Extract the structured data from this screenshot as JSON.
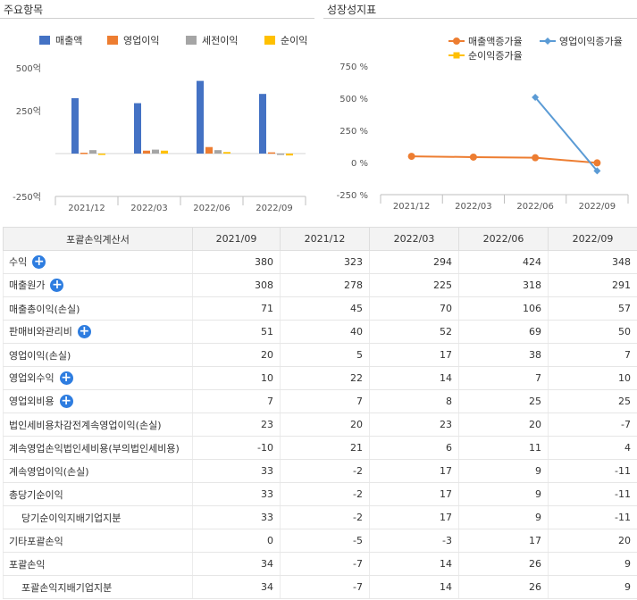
{
  "left_panel": {
    "title": "주요항목"
  },
  "right_panel": {
    "title": "성장성지표"
  },
  "chart_data": [
    {
      "type": "bar",
      "categories": [
        "2021/12",
        "2022/03",
        "2022/06",
        "2022/09"
      ],
      "series": [
        {
          "name": "매출액",
          "color": "#4472c4",
          "values": [
            323,
            294,
            424,
            348
          ]
        },
        {
          "name": "영업이익",
          "color": "#ed7d31",
          "values": [
            5,
            17,
            38,
            7
          ]
        },
        {
          "name": "세전이익",
          "color": "#a5a5a5",
          "values": [
            20,
            23,
            20,
            -7
          ]
        },
        {
          "name": "순이익",
          "color": "#ffc000",
          "values": [
            -2,
            17,
            9,
            -11
          ]
        }
      ],
      "yticks": [
        "500억",
        "250억",
        "-250억"
      ],
      "ylim": [
        -250,
        500
      ]
    },
    {
      "type": "line",
      "categories": [
        "2021/12",
        "2022/03",
        "2022/06",
        "2022/09"
      ],
      "series": [
        {
          "name": "매출액증가율",
          "color": "#ed7d31",
          "marker": "circle",
          "values": [
            48,
            42,
            37,
            -3
          ]
        },
        {
          "name": "영업이익증가율",
          "color": "#5b9bd5",
          "marker": "diamond",
          "values": [
            null,
            null,
            507,
            -65
          ]
        },
        {
          "name": "순이익증가율",
          "color": "#ffc000",
          "marker": "square",
          "values": [
            null,
            null,
            null,
            null
          ]
        }
      ],
      "yticks": [
        "750 %",
        "500 %",
        "250 %",
        "0 %",
        "-250 %"
      ],
      "ylim": [
        -250,
        750
      ]
    }
  ],
  "table": {
    "headers": [
      "포괄손익계산서",
      "2021/09",
      "2021/12",
      "2022/03",
      "2022/06",
      "2022/09"
    ],
    "rows": [
      {
        "label": "수익",
        "expand": true,
        "sub": false,
        "values": [
          "380",
          "323",
          "294",
          "424",
          "348"
        ]
      },
      {
        "label": "매출원가",
        "expand": true,
        "sub": false,
        "values": [
          "308",
          "278",
          "225",
          "318",
          "291"
        ]
      },
      {
        "label": "매출총이익(손실)",
        "expand": false,
        "sub": false,
        "values": [
          "71",
          "45",
          "70",
          "106",
          "57"
        ]
      },
      {
        "label": "판매비와관리비",
        "expand": true,
        "sub": false,
        "values": [
          "51",
          "40",
          "52",
          "69",
          "50"
        ]
      },
      {
        "label": "영업이익(손실)",
        "expand": false,
        "sub": false,
        "values": [
          "20",
          "5",
          "17",
          "38",
          "7"
        ]
      },
      {
        "label": "영업외수익",
        "expand": true,
        "sub": false,
        "values": [
          "10",
          "22",
          "14",
          "7",
          "10"
        ]
      },
      {
        "label": "영업외비용",
        "expand": true,
        "sub": false,
        "values": [
          "7",
          "7",
          "8",
          "25",
          "25"
        ]
      },
      {
        "label": "법인세비용차감전계속영업이익(손실)",
        "expand": false,
        "sub": false,
        "values": [
          "23",
          "20",
          "23",
          "20",
          "-7"
        ]
      },
      {
        "label": "계속영업손익법인세비용(부의법인세비용)",
        "expand": false,
        "sub": false,
        "values": [
          "-10",
          "21",
          "6",
          "11",
          "4"
        ]
      },
      {
        "label": "계속영업이익(손실)",
        "expand": false,
        "sub": false,
        "values": [
          "33",
          "-2",
          "17",
          "9",
          "-11"
        ]
      },
      {
        "label": "총당기순이익",
        "expand": false,
        "sub": false,
        "values": [
          "33",
          "-2",
          "17",
          "9",
          "-11"
        ]
      },
      {
        "label": "당기순이익지배기업지분",
        "expand": false,
        "sub": true,
        "values": [
          "33",
          "-2",
          "17",
          "9",
          "-11"
        ]
      },
      {
        "label": "기타포괄손익",
        "expand": false,
        "sub": false,
        "values": [
          "0",
          "-5",
          "-3",
          "17",
          "20"
        ]
      },
      {
        "label": "포괄손익",
        "expand": false,
        "sub": false,
        "values": [
          "34",
          "-7",
          "14",
          "26",
          "9"
        ]
      },
      {
        "label": "포괄손익지배기업지분",
        "expand": false,
        "sub": true,
        "values": [
          "34",
          "-7",
          "14",
          "26",
          "9"
        ]
      }
    ]
  }
}
